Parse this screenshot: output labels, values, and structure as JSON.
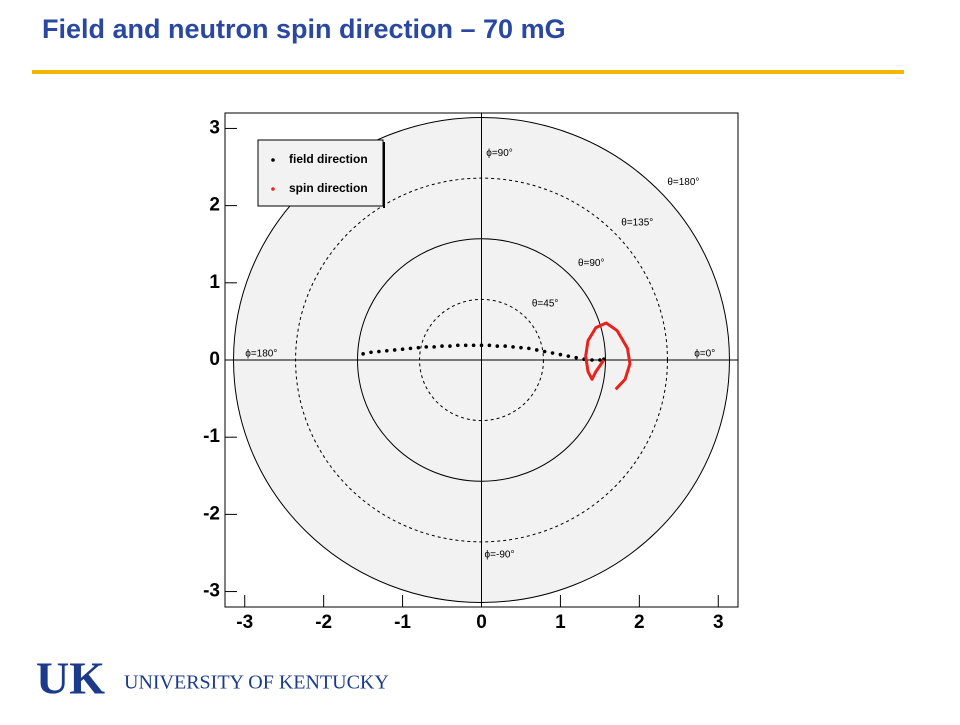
{
  "slide": {
    "title": "Field and neutron spin direction – 70 mG"
  },
  "chart_data": {
    "type": "scatter",
    "xlim": [
      -3.25,
      3.25
    ],
    "ylim": [
      -3.2,
      3.2
    ],
    "xticks": [
      -3,
      -2,
      -1,
      0,
      1,
      2,
      3
    ],
    "yticks": [
      -3,
      -2,
      -1,
      0,
      1,
      2,
      3
    ],
    "circles": [
      {
        "r": 0.785,
        "label": "θ=45°",
        "dashed": true
      },
      {
        "r": 1.571,
        "label": "θ=90°",
        "dashed": false
      },
      {
        "r": 2.356,
        "label": "θ=135°",
        "dashed": true
      },
      {
        "r": 3.142,
        "label": "θ=180°",
        "dashed": false
      }
    ],
    "phi_labels": [
      {
        "angle": 90,
        "label": "ϕ=90°"
      },
      {
        "angle": 0,
        "label": "ϕ=0°"
      },
      {
        "angle": 180,
        "label": "ϕ=180°"
      },
      {
        "angle": -90,
        "label": "ϕ=-90°"
      }
    ],
    "series": [
      {
        "name": "field direction",
        "color": "#000000",
        "x": [
          -1.5,
          -1.4,
          -1.3,
          -1.2,
          -1.1,
          -1.0,
          -0.9,
          -0.8,
          -0.7,
          -0.6,
          -0.5,
          -0.4,
          -0.3,
          -0.2,
          -0.1,
          0,
          0.1,
          0.2,
          0.3,
          0.4,
          0.5,
          0.6,
          0.7,
          0.8,
          0.9,
          1.0,
          1.1,
          1.2,
          1.3,
          1.4,
          1.5,
          1.55
        ],
        "values": [
          0.08,
          0.1,
          0.11,
          0.12,
          0.13,
          0.14,
          0.15,
          0.16,
          0.17,
          0.17,
          0.18,
          0.18,
          0.19,
          0.19,
          0.19,
          0.19,
          0.19,
          0.18,
          0.18,
          0.17,
          0.16,
          0.15,
          0.13,
          0.11,
          0.09,
          0.07,
          0.05,
          0.03,
          0.01,
          0.0,
          0.0,
          0.01
        ]
      },
      {
        "name": "spin direction",
        "color": "#e8221c",
        "x": [
          1.55,
          1.45,
          1.4,
          1.35,
          1.32,
          1.35,
          1.45,
          1.58,
          1.72,
          1.85,
          1.88,
          1.82,
          1.7
        ],
        "values": [
          0.0,
          -0.15,
          -0.25,
          -0.15,
          0.05,
          0.25,
          0.42,
          0.48,
          0.38,
          0.15,
          -0.05,
          -0.25,
          -0.38
        ]
      }
    ]
  },
  "logo": {
    "mark": "UK",
    "text": "UNIVERSITY OF KENTUCKY"
  }
}
